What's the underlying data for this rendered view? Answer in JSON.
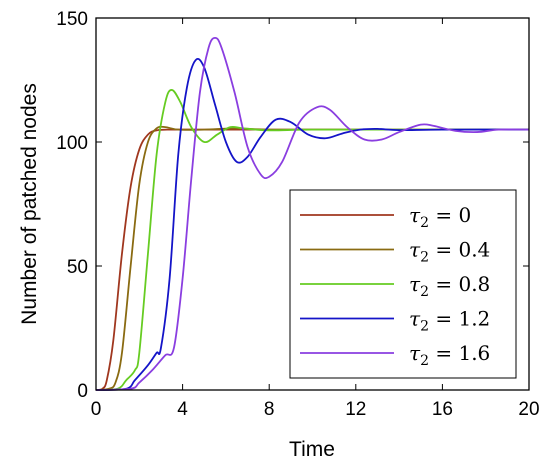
{
  "chart_data": {
    "type": "line",
    "xlabel": "Time",
    "ylabel": "Number of patched nodes",
    "xlim": [
      0,
      20
    ],
    "ylim": [
      0,
      150
    ],
    "xticks": [
      "0",
      "4",
      "8",
      "12",
      "16",
      "20"
    ],
    "yticks": [
      "0",
      "50",
      "100",
      "150"
    ],
    "grid": false,
    "legend_position": "bottom-right",
    "series": [
      {
        "name": "τ2 = 0",
        "symbol": "τ",
        "subscript": "2",
        "value_text": " = 0",
        "color": "#a0371f",
        "points": [
          [
            0,
            0
          ],
          [
            0.3,
            0.5
          ],
          [
            0.5,
            4
          ],
          [
            0.8,
            20
          ],
          [
            1.2,
            55
          ],
          [
            1.6,
            82
          ],
          [
            2.0,
            97
          ],
          [
            2.4,
            103
          ],
          [
            2.8,
            104.7
          ],
          [
            3.5,
            105
          ],
          [
            5,
            105
          ],
          [
            8,
            105
          ],
          [
            12,
            105
          ],
          [
            16,
            105
          ],
          [
            20,
            105
          ]
        ]
      },
      {
        "name": "τ2 = 0.4",
        "symbol": "τ",
        "subscript": "2",
        "value_text": " = 0.4",
        "color": "#8a6b12",
        "points": [
          [
            0,
            0
          ],
          [
            0.6,
            0.5
          ],
          [
            0.9,
            3
          ],
          [
            1.2,
            15
          ],
          [
            1.6,
            50
          ],
          [
            2.0,
            83
          ],
          [
            2.4,
            100
          ],
          [
            2.8,
            105.5
          ],
          [
            3.2,
            106
          ],
          [
            3.8,
            105
          ],
          [
            5,
            105
          ],
          [
            6.5,
            105.5
          ],
          [
            8,
            105
          ],
          [
            12,
            105
          ],
          [
            16,
            105
          ],
          [
            20,
            105
          ]
        ]
      },
      {
        "name": "τ2 = 0.8",
        "symbol": "τ",
        "subscript": "2",
        "value_text": " = 0.8",
        "color": "#66cc22",
        "points": [
          [
            0,
            0
          ],
          [
            1.0,
            0.5
          ],
          [
            1.4,
            4
          ],
          [
            1.8,
            8
          ],
          [
            2.0,
            15
          ],
          [
            2.4,
            55
          ],
          [
            2.8,
            95
          ],
          [
            3.2,
            116
          ],
          [
            3.5,
            121
          ],
          [
            3.9,
            116
          ],
          [
            4.4,
            106
          ],
          [
            5.0,
            100
          ],
          [
            5.6,
            103
          ],
          [
            6.2,
            106
          ],
          [
            6.8,
            105.5
          ],
          [
            8,
            104.7
          ],
          [
            10,
            105
          ],
          [
            14,
            105
          ],
          [
            20,
            105
          ]
        ]
      },
      {
        "name": "τ2 = 1.2",
        "symbol": "τ",
        "subscript": "2",
        "value_text": " = 1.2",
        "color": "#1414c8",
        "points": [
          [
            0,
            0
          ],
          [
            1.4,
            0.5
          ],
          [
            1.8,
            4
          ],
          [
            2.4,
            10
          ],
          [
            2.8,
            15
          ],
          [
            3.0,
            17
          ],
          [
            3.4,
            45
          ],
          [
            3.8,
            95
          ],
          [
            4.2,
            122
          ],
          [
            4.6,
            133
          ],
          [
            5.0,
            130
          ],
          [
            5.5,
            115
          ],
          [
            6.0,
            100
          ],
          [
            6.5,
            92
          ],
          [
            7.0,
            94
          ],
          [
            7.6,
            102
          ],
          [
            8.3,
            109
          ],
          [
            9.0,
            108
          ],
          [
            9.8,
            103
          ],
          [
            10.6,
            101.5
          ],
          [
            11.4,
            103.5
          ],
          [
            12.2,
            105
          ],
          [
            13,
            105.3
          ],
          [
            14,
            104.8
          ],
          [
            16,
            105
          ],
          [
            20,
            105
          ]
        ]
      },
      {
        "name": "τ2 = 1.6",
        "symbol": "τ",
        "subscript": "2",
        "value_text": " = 1.6",
        "color": "#8a3ee0",
        "points": [
          [
            0,
            0
          ],
          [
            1.6,
            0.5
          ],
          [
            2.0,
            3
          ],
          [
            2.6,
            8
          ],
          [
            3.2,
            14
          ],
          [
            3.6,
            17
          ],
          [
            4.0,
            45
          ],
          [
            4.4,
            85
          ],
          [
            4.8,
            120
          ],
          [
            5.2,
            138
          ],
          [
            5.5,
            142
          ],
          [
            5.8,
            138
          ],
          [
            6.4,
            120
          ],
          [
            7.0,
            98
          ],
          [
            7.6,
            87
          ],
          [
            8.0,
            86
          ],
          [
            8.6,
            92
          ],
          [
            9.4,
            108
          ],
          [
            10.2,
            114
          ],
          [
            10.8,
            113
          ],
          [
            11.6,
            106
          ],
          [
            12.4,
            101
          ],
          [
            13.2,
            101
          ],
          [
            14.0,
            104
          ],
          [
            15.0,
            107
          ],
          [
            15.6,
            106.5
          ],
          [
            16.6,
            104.5
          ],
          [
            17.6,
            104
          ],
          [
            18.6,
            105
          ],
          [
            20,
            105
          ]
        ]
      }
    ]
  }
}
